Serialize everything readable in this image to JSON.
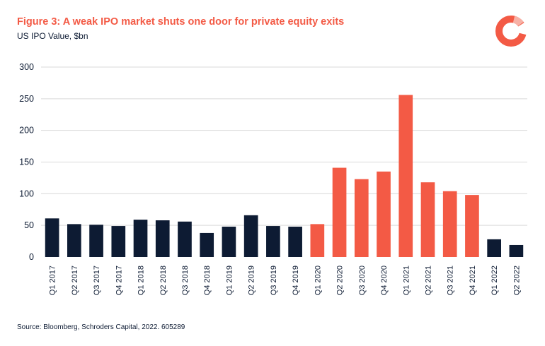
{
  "header": {
    "title": "Figure 3: A weak IPO market shuts one door for private equity exits",
    "subtitle": "US IPO Value, $bn"
  },
  "footer": {
    "source": "Source: Bloomberg, Schroders Capital, 2022. 605289"
  },
  "logo": {
    "icon": "schroders-ring-logo-icon",
    "color": "#f35a45"
  },
  "colors": {
    "navy": "#0d1b33",
    "coral": "#f35a45",
    "grid": "#d9d9d9"
  },
  "chart_data": {
    "type": "bar",
    "categories": [
      "Q1 2017",
      "Q2 2017",
      "Q3 2017",
      "Q4 2017",
      "Q1 2018",
      "Q2 2018",
      "Q3 2018",
      "Q4 2018",
      "Q1 2019",
      "Q2 2019",
      "Q3 2019",
      "Q4 2019",
      "Q1 2020",
      "Q2 2020",
      "Q3 2020",
      "Q4 2020",
      "Q1 2021",
      "Q2 2021",
      "Q3 2021",
      "Q4 2021",
      "Q1 2022",
      "Q2 2022"
    ],
    "values": [
      61,
      52,
      51,
      49,
      59,
      58,
      56,
      38,
      48,
      66,
      49,
      48,
      52,
      141,
      123,
      135,
      256,
      118,
      104,
      98,
      28,
      19
    ],
    "bar_colors": [
      "#0d1b33",
      "#0d1b33",
      "#0d1b33",
      "#0d1b33",
      "#0d1b33",
      "#0d1b33",
      "#0d1b33",
      "#0d1b33",
      "#0d1b33",
      "#0d1b33",
      "#0d1b33",
      "#0d1b33",
      "#f35a45",
      "#f35a45",
      "#f35a45",
      "#f35a45",
      "#f35a45",
      "#f35a45",
      "#f35a45",
      "#f35a45",
      "#0d1b33",
      "#0d1b33"
    ],
    "yticks": [
      0,
      50,
      100,
      150,
      200,
      250,
      300
    ],
    "ylim": [
      0,
      300
    ],
    "grid": true,
    "legend": "none"
  }
}
